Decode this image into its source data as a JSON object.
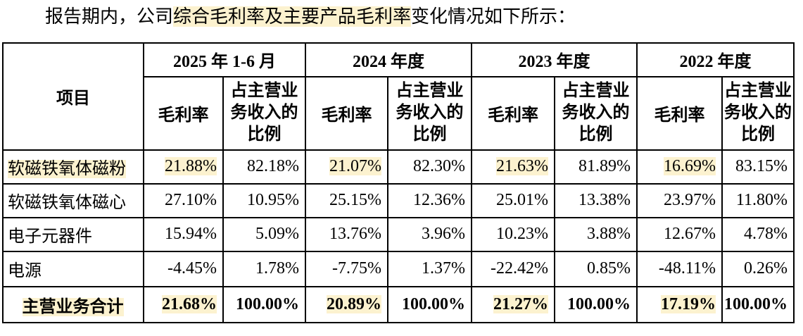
{
  "colors": {
    "highlight": "#fcf2cf",
    "border": "#000000",
    "text": "#000000"
  },
  "title": {
    "prefix": "报告期内，公司",
    "highlight": "综合毛利率及主要产品毛利率",
    "suffix": "变化情况如下所示："
  },
  "table": {
    "item_header": "项目",
    "period_headers": [
      "2025 年 1-6 月",
      "2024 年度",
      "2023 年度",
      "2022 年度"
    ],
    "sub_headers": [
      "毛利率",
      "占主营业务收入的比例"
    ],
    "rows": [
      {
        "name": "软磁铁氧体磁粉",
        "name_highlight": true,
        "bold": false,
        "values": [
          "21.88%",
          "82.18%",
          "21.07%",
          "82.30%",
          "21.63%",
          "81.89%",
          "16.69%",
          "83.15%"
        ],
        "value_highlights": [
          true,
          false,
          true,
          false,
          true,
          false,
          true,
          false
        ]
      },
      {
        "name": "软磁铁氧体磁心",
        "name_highlight": false,
        "bold": false,
        "values": [
          "27.10%",
          "10.95%",
          "25.15%",
          "12.36%",
          "25.01%",
          "13.38%",
          "23.97%",
          "11.80%"
        ],
        "value_highlights": [
          false,
          false,
          false,
          false,
          false,
          false,
          false,
          false
        ]
      },
      {
        "name": "电子元器件",
        "name_highlight": false,
        "bold": false,
        "values": [
          "15.94%",
          "5.09%",
          "13.76%",
          "3.96%",
          "10.23%",
          "3.88%",
          "12.67%",
          "4.78%"
        ],
        "value_highlights": [
          false,
          false,
          false,
          false,
          false,
          false,
          false,
          false
        ]
      },
      {
        "name": "电源",
        "name_highlight": false,
        "bold": false,
        "values": [
          "-4.45%",
          "1.78%",
          "-7.75%",
          "1.37%",
          "-22.42%",
          "0.85%",
          "-48.11%",
          "0.26%"
        ],
        "value_highlights": [
          false,
          false,
          false,
          false,
          false,
          false,
          false,
          false
        ]
      },
      {
        "name": "主营业务合计",
        "name_highlight": true,
        "bold": true,
        "values": [
          "21.68%",
          "100.00%",
          "20.89%",
          "100.00%",
          "21.27%",
          "100.00%",
          "17.19%",
          "100.00%"
        ],
        "value_highlights": [
          true,
          false,
          true,
          false,
          true,
          false,
          true,
          false
        ]
      }
    ]
  }
}
